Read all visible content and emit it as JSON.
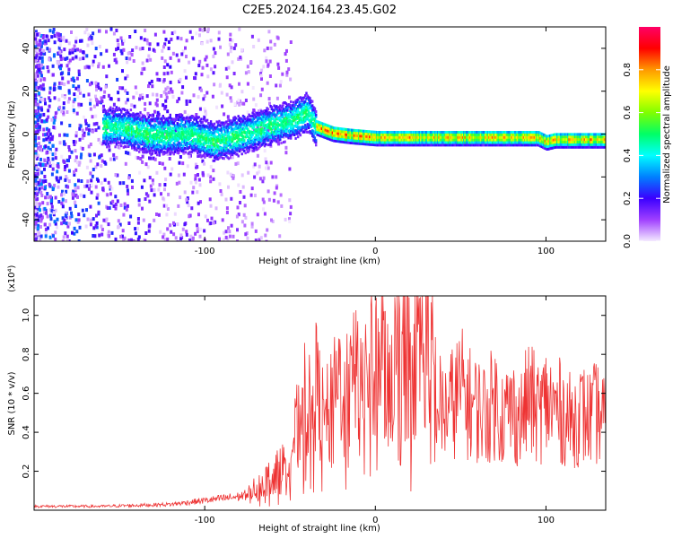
{
  "title": "C2E5.2024.164.23.45.G02",
  "chart_data": [
    {
      "type": "heatmap",
      "xlabel": "Height of straight line (km)",
      "ylabel": "Frequency (Hz)",
      "xlim": [
        -200,
        135
      ],
      "ylim": [
        -50,
        50
      ],
      "xticks": [
        -100,
        0,
        100
      ],
      "yticks": [
        -40,
        -20,
        0,
        20,
        40
      ],
      "colorbar": {
        "label": "Normalized spectral amplitude",
        "range": [
          0,
          1
        ],
        "ticks": [
          0.0,
          0.2,
          0.4,
          0.6,
          0.8
        ],
        "tick_labels": [
          "0.0",
          "0.2",
          "0.4",
          "0.6",
          "0.8"
        ],
        "colors": [
          "#f4eaff",
          "#a040ff",
          "#3a00ff",
          "#0080ff",
          "#00ffff",
          "#00ff66",
          "#80ff00",
          "#ffff00",
          "#ff9900",
          "#ff0000",
          "#ff0066"
        ]
      },
      "ridge": [
        {
          "x": -150,
          "y": 4
        },
        {
          "x": -130,
          "y": 0
        },
        {
          "x": -110,
          "y": 1
        },
        {
          "x": -95,
          "y": -3
        },
        {
          "x": -80,
          "y": 0
        },
        {
          "x": -65,
          "y": 4
        },
        {
          "x": -50,
          "y": 7
        },
        {
          "x": -40,
          "y": 11
        },
        {
          "x": -35,
          "y": 4
        },
        {
          "x": -25,
          "y": 1
        },
        {
          "x": -15,
          "y": 0
        },
        {
          "x": 0,
          "y": -1
        },
        {
          "x": 50,
          "y": -1
        },
        {
          "x": 95,
          "y": -1
        },
        {
          "x": 100,
          "y": -3
        },
        {
          "x": 105,
          "y": -2
        },
        {
          "x": 135,
          "y": -2
        }
      ]
    },
    {
      "type": "line",
      "xlabel": "Height of straight line (km)",
      "ylabel": "SNR (10 * v/v)",
      "scale_label": "(x10⁴)",
      "xlim": [
        -200,
        135
      ],
      "ylim": [
        0,
        1.1
      ],
      "xticks": [
        -100,
        0,
        100
      ],
      "yticks": [
        0.2,
        0.4,
        0.6,
        0.8,
        1.0
      ],
      "ytick_labels": [
        "0.2",
        "0.4",
        "0.6",
        "0.8",
        "1.0"
      ],
      "color": "#ee3333",
      "series": [
        {
          "x": [
            -200,
            -180,
            -160,
            -140,
            -120,
            -110,
            -100,
            -90,
            -80,
            -75,
            -70,
            -65,
            -60,
            -55,
            -50,
            -45,
            -42,
            -38,
            -35,
            -30,
            -25,
            -20,
            -15,
            -10,
            -5,
            0,
            5,
            10,
            15,
            20,
            25,
            30,
            33,
            36,
            40,
            45,
            50,
            55,
            60,
            65,
            70,
            75,
            80,
            85,
            90,
            95,
            100,
            105,
            110,
            115,
            120,
            125,
            130,
            135
          ],
          "y": [
            0.02,
            0.02,
            0.02,
            0.025,
            0.03,
            0.04,
            0.05,
            0.06,
            0.07,
            0.08,
            0.12,
            0.15,
            0.18,
            0.22,
            0.3,
            0.45,
            0.6,
            0.5,
            0.65,
            0.45,
            0.55,
            0.7,
            0.6,
            0.75,
            0.7,
            0.78,
            0.8,
            0.72,
            0.85,
            0.82,
            0.88,
            0.9,
            0.8,
            0.55,
            0.5,
            0.55,
            0.62,
            0.55,
            0.52,
            0.5,
            0.56,
            0.48,
            0.52,
            0.46,
            0.58,
            0.5,
            0.55,
            0.52,
            0.5,
            0.45,
            0.5,
            0.47,
            0.5,
            0.45
          ]
        }
      ]
    }
  ]
}
